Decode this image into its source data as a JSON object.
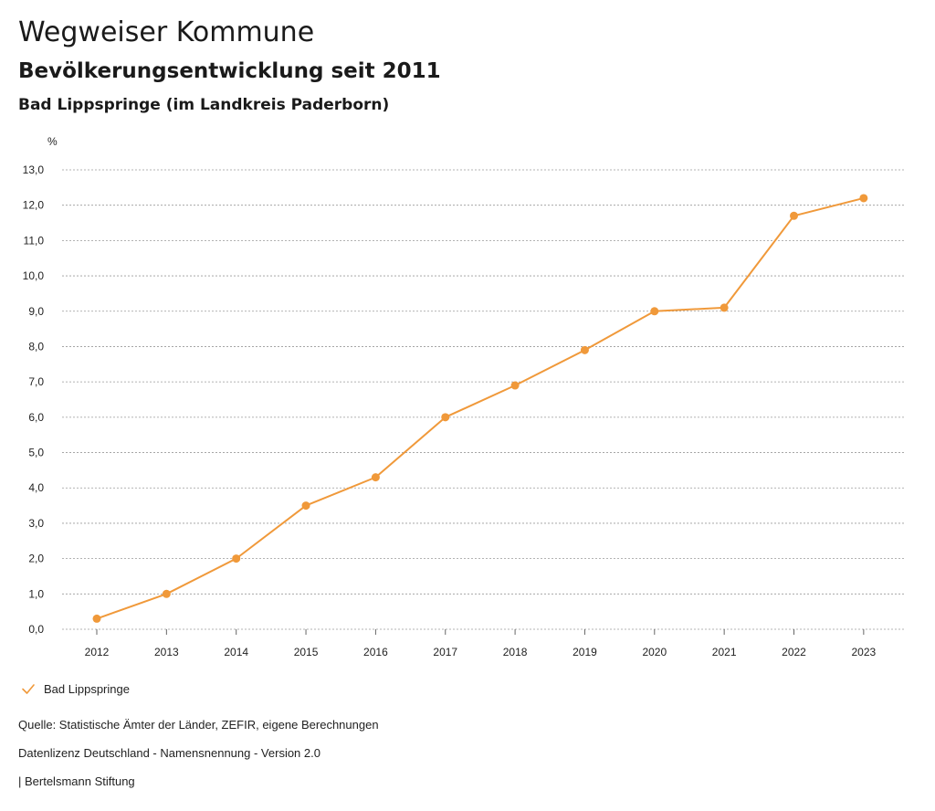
{
  "header": {
    "title": "Wegweiser Kommune",
    "subtitle": "Bevölkerungsentwicklung seit 2011",
    "region": "Bad Lippspringe (im Landkreis Paderborn)"
  },
  "chart_data": {
    "type": "line",
    "ylabel": "%",
    "ylim": [
      0,
      13
    ],
    "yticks": [
      "0,0",
      "1,0",
      "2,0",
      "3,0",
      "4,0",
      "5,0",
      "6,0",
      "7,0",
      "8,0",
      "9,0",
      "10,0",
      "11,0",
      "12,0",
      "13,0"
    ],
    "categories": [
      "2012",
      "2013",
      "2014",
      "2015",
      "2016",
      "2017",
      "2018",
      "2019",
      "2020",
      "2021",
      "2022",
      "2023"
    ],
    "series": [
      {
        "name": "Bad Lippspringe",
        "color": "#f0993a",
        "values": [
          0.3,
          1.0,
          2.0,
          3.5,
          4.3,
          6.0,
          6.9,
          7.9,
          9.0,
          9.1,
          11.7,
          12.2
        ]
      }
    ],
    "grid": true,
    "legend": "bottom-left"
  },
  "legend": {
    "label": "Bad Lippspringe",
    "icon": "check-icon"
  },
  "footer": {
    "source": "Quelle: Statistische Ämter der Länder, ZEFIR, eigene Berechnungen",
    "license": "Datenlizenz Deutschland - Namensnennung - Version 2.0",
    "credit": "| Bertelsmann Stiftung"
  }
}
